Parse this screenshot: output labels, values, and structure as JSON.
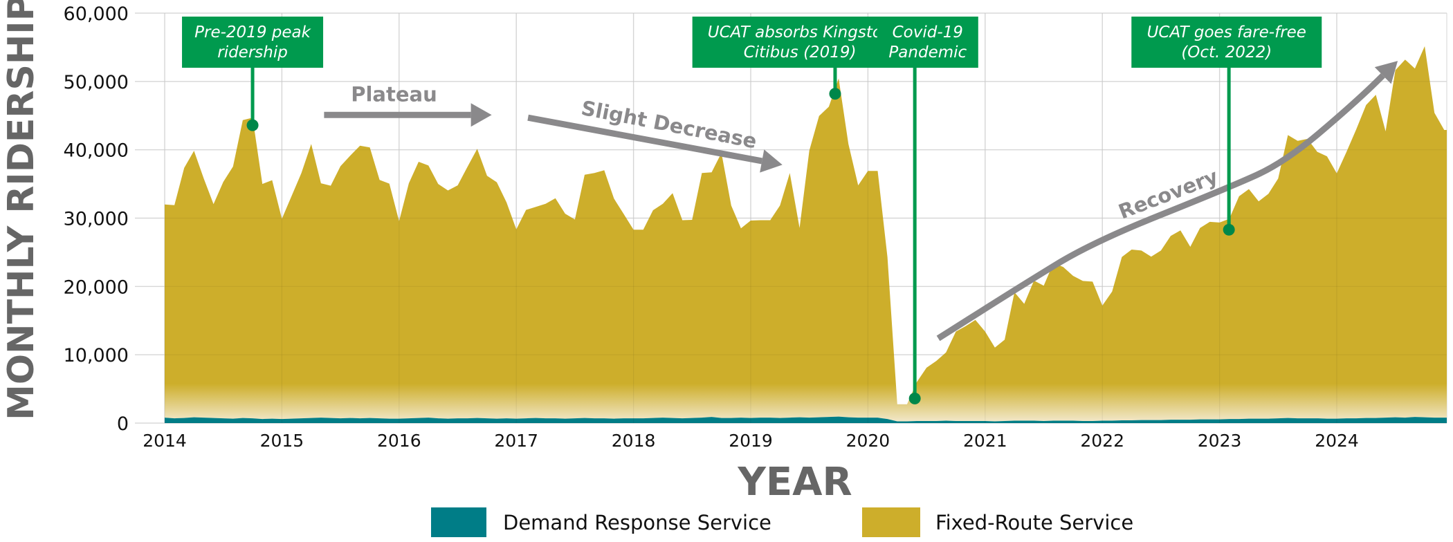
{
  "chart_data": {
    "type": "area",
    "stacked": true,
    "title": "",
    "xlabel": "YEAR",
    "ylabel": "MONTHLY RIDERSHIP",
    "xlim": [
      2013.76,
      2024.94
    ],
    "ylim": [
      0,
      60000
    ],
    "x_ticks": [
      2014,
      2015,
      2016,
      2017,
      2018,
      2019,
      2020,
      2021,
      2022,
      2023,
      2024
    ],
    "y_ticks": [
      0,
      10000,
      20000,
      30000,
      40000,
      50000,
      60000
    ],
    "y_tick_labels": [
      "0",
      "10,000",
      "20,000",
      "30,000",
      "40,000",
      "50,000",
      "60,000"
    ],
    "grid": true,
    "legend_position": "bottom",
    "x_start": "Jan 2014",
    "x_step": "monthly",
    "series": [
      {
        "name": "Demand Response Service",
        "color": "#007d87",
        "values": [
          800,
          700,
          750,
          850,
          800,
          750,
          700,
          650,
          750,
          700,
          600,
          650,
          600,
          650,
          700,
          750,
          800,
          750,
          700,
          750,
          700,
          750,
          700,
          650,
          650,
          700,
          750,
          800,
          700,
          650,
          700,
          700,
          750,
          700,
          650,
          700,
          650,
          700,
          750,
          700,
          700,
          650,
          700,
          750,
          700,
          700,
          650,
          700,
          700,
          700,
          750,
          800,
          750,
          700,
          750,
          800,
          900,
          750,
          750,
          800,
          750,
          800,
          800,
          750,
          800,
          850,
          800,
          850,
          900,
          950,
          850,
          800,
          800,
          800,
          600,
          250,
          250,
          300,
          300,
          300,
          350,
          300,
          300,
          300,
          300,
          250,
          300,
          350,
          350,
          350,
          300,
          350,
          350,
          350,
          300,
          300,
          350,
          350,
          400,
          400,
          450,
          450,
          450,
          500,
          500,
          500,
          550,
          550,
          550,
          600,
          600,
          650,
          650,
          650,
          700,
          750,
          700,
          700,
          700,
          650,
          650,
          700,
          700,
          750,
          750,
          800,
          850,
          800,
          900,
          850,
          800,
          800
        ]
      },
      {
        "name": "Fixed-Route Service",
        "color": "#cdae2b",
        "values": [
          31200,
          31200,
          36600,
          39000,
          35000,
          31300,
          34600,
          36900,
          43600,
          44000,
          34400,
          34900,
          29300,
          32600,
          35900,
          40100,
          34300,
          34000,
          36900,
          38400,
          39900,
          39600,
          34900,
          34400,
          28900,
          34400,
          37500,
          36900,
          34300,
          33400,
          34100,
          36800,
          39400,
          35500,
          34600,
          31600,
          27700,
          30500,
          30900,
          31400,
          32200,
          30000,
          29100,
          35600,
          35900,
          36300,
          32200,
          29900,
          27600,
          27600,
          30400,
          31300,
          32900,
          29000,
          29000,
          35800,
          35800,
          38800,
          31100,
          27700,
          28900,
          28900,
          28900,
          31100,
          35800,
          27700,
          39100,
          44100,
          45400,
          49500,
          40000,
          34000,
          36100,
          36100,
          23700,
          2500,
          2500,
          5700,
          7800,
          8800,
          10000,
          13100,
          13900,
          14800,
          13100,
          10800,
          11900,
          18800,
          17100,
          20500,
          19800,
          23100,
          22500,
          21200,
          20500,
          20400,
          16850,
          18900,
          23900,
          25000,
          24800,
          23900,
          24800,
          26900,
          27700,
          25300,
          28000,
          28900,
          28800,
          29300,
          32600,
          33600,
          31800,
          32900,
          35100,
          41400,
          40600,
          40900,
          39000,
          38400,
          35900,
          39000,
          42300,
          45800,
          47300,
          41900,
          50800,
          52400,
          51000,
          54300,
          44600,
          42100
        ]
      }
    ],
    "annotations": [
      {
        "text_lines": [
          "Pre-2019 peak",
          "ridership"
        ],
        "x": 2014.75,
        "y": 43600,
        "box_x": 2014.75
      },
      {
        "text_lines": [
          "UCAT absorbs Kingston",
          "Citibus (2019)"
        ],
        "x": 2019.72,
        "y": 48200,
        "box_x": 2019.42
      },
      {
        "text_lines": [
          "Covid-19",
          "Pandemic"
        ],
        "x": 2020.4,
        "y": 3600,
        "box_x": 2020.51
      },
      {
        "text_lines": [
          "UCAT goes fare-free",
          "(Oct. 2022)"
        ],
        "x": 2023.08,
        "y": 28300,
        "box_x": 2023.06
      }
    ],
    "annotation_color": "#009a4e",
    "trend_arrows": [
      {
        "label": "Plateau",
        "points": [
          [
            2015.36,
            45100
          ],
          [
            2016.79,
            45100
          ]
        ]
      },
      {
        "label": "Slight Decrease",
        "points": [
          [
            2017.1,
            44700
          ],
          [
            2019.27,
            37800
          ]
        ]
      },
      {
        "label": "Recovery",
        "points": [
          [
            2020.6,
            12400
          ],
          [
            2021.3,
            20000
          ],
          [
            2021.92,
            26500
          ],
          [
            2023.07,
            34400
          ],
          [
            2023.56,
            38200
          ],
          [
            2024.17,
            47100
          ],
          [
            2024.52,
            53000
          ]
        ]
      }
    ],
    "trend_color": "#8a898b"
  }
}
